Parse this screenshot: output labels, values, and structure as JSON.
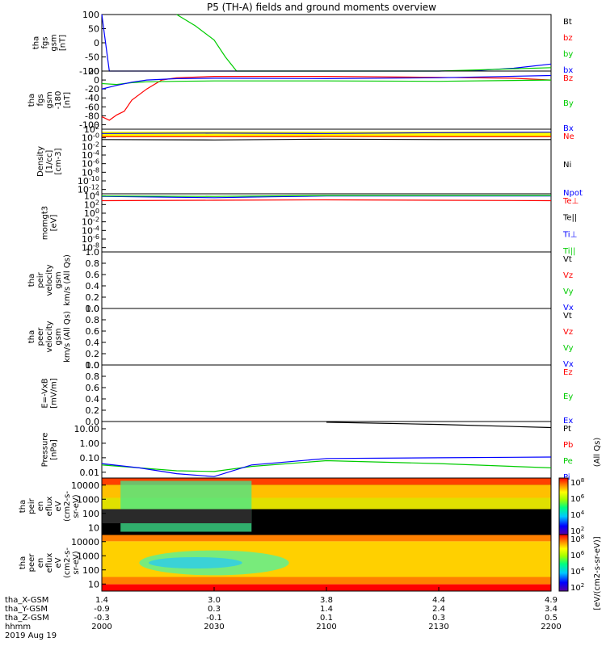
{
  "title": "P5 (TH-A) fields and ground moments overview",
  "colors": {
    "black": "#000000",
    "red": "#ff0000",
    "green": "#00cc00",
    "blue": "#0000ff",
    "yellow": "#ffff00"
  },
  "chart_data": [
    {
      "type": "line",
      "ylabel": [
        "tha",
        "fgs",
        "gsm",
        "[nT]"
      ],
      "yticks": [
        "100",
        "50",
        "0",
        "-50",
        "-100"
      ],
      "ylim": [
        -100,
        100
      ],
      "legend": [
        {
          "name": "Bt",
          "color": "black"
        },
        {
          "name": "bz",
          "color": "red"
        },
        {
          "name": "by",
          "color": "green"
        },
        {
          "name": "bx",
          "color": "blue"
        }
      ],
      "series": [
        {
          "name": "bx",
          "color": "blue",
          "x": [
            2000,
            2002,
            2010,
            2030,
            2100,
            2130,
            2140,
            2150,
            2200
          ],
          "y": [
            100,
            -100,
            -100,
            -100,
            -100,
            -100,
            -98,
            -90,
            -75
          ]
        },
        {
          "name": "by",
          "color": "green",
          "x": [
            2020,
            2025,
            2030,
            2033,
            2036,
            2045,
            2100,
            2130,
            2200
          ],
          "y": [
            100,
            60,
            10,
            -50,
            -100,
            -100,
            -100,
            -100,
            -88
          ]
        }
      ]
    },
    {
      "type": "line",
      "ylabel": [
        "tha",
        "fgs",
        "gsm",
        "-180",
        "[nT]"
      ],
      "yticks": [
        "20",
        "0",
        "-20",
        "-40",
        "-60",
        "-80",
        "-100"
      ],
      "ylim": [
        -110,
        20
      ],
      "legend": [
        {
          "name": "Bz",
          "color": "red"
        },
        {
          "name": "By",
          "color": "green"
        },
        {
          "name": "Bx",
          "color": "blue"
        }
      ],
      "series": [
        {
          "name": "Bz",
          "color": "red",
          "x": [
            2000,
            2002,
            2004,
            2006,
            2008,
            2012,
            2016,
            2020,
            2030,
            2045,
            2100,
            2130,
            2150,
            2200
          ],
          "y": [
            -82,
            -90,
            -78,
            -70,
            -45,
            -20,
            0,
            5,
            8,
            8,
            8,
            6,
            4,
            0
          ]
        },
        {
          "name": "By",
          "color": "green",
          "x": [
            2000,
            2004,
            2008,
            2012,
            2020,
            2030,
            2100,
            2130,
            2200
          ],
          "y": [
            -8,
            -10,
            -6,
            -4,
            -3,
            -2,
            -2,
            -3,
            0
          ]
        },
        {
          "name": "Bx",
          "color": "blue",
          "x": [
            2000,
            2004,
            2008,
            2012,
            2020,
            2030,
            2100,
            2130,
            2200
          ],
          "y": [
            -20,
            -12,
            -5,
            0,
            3,
            4,
            3,
            5,
            10
          ]
        }
      ]
    },
    {
      "type": "line",
      "ylabel": [
        "Density",
        "[1/cc]",
        "[cm-3]"
      ],
      "yticks": [
        "10^2",
        "10^-0",
        "10^-2",
        "10^-4",
        "10^-6",
        "10^-8",
        "10^-10",
        "10^-12"
      ],
      "ylim": [
        -13,
        2
      ],
      "log": true,
      "legend": [
        {
          "name": "Ne",
          "color": "red"
        },
        {
          "name": "Ni",
          "color": "black"
        },
        {
          "name": "Npot",
          "color": "blue"
        }
      ],
      "series": [
        {
          "name": "Ne",
          "color": "red",
          "x": [
            2000,
            2030,
            2100,
            2130,
            2200
          ],
          "y": [
            0.3,
            0.3,
            0.35,
            0.3,
            0.3
          ]
        },
        {
          "name": "Ni",
          "color": "black",
          "x": [
            2000,
            2030,
            2100,
            2130,
            2200
          ],
          "y": [
            -0.4,
            -0.5,
            -0.3,
            -0.4,
            -0.4
          ]
        },
        {
          "name": "Npot",
          "color": "blue",
          "x": [
            2000,
            2030,
            2100,
            2130,
            2200
          ],
          "y": [
            1.0,
            1.1,
            1.0,
            1.2,
            1.3
          ]
        }
      ]
    },
    {
      "type": "line",
      "ylabel": [
        "momgt3",
        "[eV]"
      ],
      "yticks": [
        "10^4",
        "10^2",
        "10^0",
        "10^-2",
        "10^-4",
        "10^-6",
        "10^-8"
      ],
      "ylim": [
        -9,
        4.5
      ],
      "log": true,
      "legend": [
        {
          "name": "Te⊥",
          "color": "red"
        },
        {
          "name": "Te||",
          "color": "black"
        },
        {
          "name": "Ti⊥",
          "color": "blue"
        },
        {
          "name": "Ti||",
          "color": "green"
        }
      ],
      "series": [
        {
          "name": "Te⊥",
          "color": "red",
          "x": [
            2000,
            2030,
            2100,
            2130,
            2200
          ],
          "y": [
            2.9,
            3.0,
            3.1,
            3.0,
            2.9
          ]
        },
        {
          "name": "Ti⊥",
          "color": "blue",
          "x": [
            2000,
            2020,
            2030,
            2045,
            2100,
            2130,
            2200
          ],
          "y": [
            3.9,
            3.7,
            3.6,
            3.8,
            4.0,
            4.0,
            4.0
          ]
        },
        {
          "name": "Ti||",
          "color": "green",
          "x": [
            2000,
            2030,
            2100,
            2200
          ],
          "y": [
            4.0,
            3.9,
            4.1,
            4.1
          ]
        }
      ]
    },
    {
      "type": "line",
      "ylabel": [
        "tha",
        "peir",
        "velocity",
        "gsm",
        "km/s (All Qs)"
      ],
      "yticks": [
        "1.0",
        "0.8",
        "0.6",
        "0.4",
        "0.2",
        "0.0"
      ],
      "ylim": [
        0,
        1
      ],
      "legend": [
        {
          "name": "Vt",
          "color": "black"
        },
        {
          "name": "Vz",
          "color": "red"
        },
        {
          "name": "Vy",
          "color": "green"
        },
        {
          "name": "Vx",
          "color": "blue"
        }
      ],
      "series": []
    },
    {
      "type": "line",
      "ylabel": [
        "tha",
        "peer",
        "velocity",
        "gsm",
        "km/s (All Qs)"
      ],
      "yticks": [
        "1.0",
        "0.8",
        "0.6",
        "0.4",
        "0.2",
        "0.0"
      ],
      "ylim": [
        0,
        1
      ],
      "legend": [
        {
          "name": "Vt",
          "color": "black"
        },
        {
          "name": "Vz",
          "color": "red"
        },
        {
          "name": "Vy",
          "color": "green"
        },
        {
          "name": "Vx",
          "color": "blue"
        }
      ],
      "series": []
    },
    {
      "type": "line",
      "ylabel": [
        "E=-VxB",
        "[mV/m]"
      ],
      "yticks": [
        "1.0",
        "0.8",
        "0.6",
        "0.4",
        "0.2",
        "0.0"
      ],
      "ylim": [
        0,
        1
      ],
      "legend": [
        {
          "name": "Ez",
          "color": "red"
        },
        {
          "name": "Ey",
          "color": "green"
        },
        {
          "name": "Ex",
          "color": "blue"
        }
      ],
      "series": []
    },
    {
      "type": "line",
      "ylabel": [
        "Pressure",
        "[nPa]"
      ],
      "yticks": [
        "10.00",
        "1.00",
        "0.10",
        "0.01"
      ],
      "ylim": [
        -2.4,
        1.5
      ],
      "log": true,
      "legend": [
        {
          "name": "Pt",
          "color": "black"
        },
        {
          "name": "Pb",
          "color": "red"
        },
        {
          "name": "Pe",
          "color": "green"
        },
        {
          "name": "Pi",
          "color": "blue"
        }
      ],
      "series": [
        {
          "name": "Pt",
          "color": "black",
          "x": [
            2100,
            2130,
            2200
          ],
          "y": [
            1.45,
            1.3,
            1.08
          ]
        },
        {
          "name": "Pe",
          "color": "green",
          "x": [
            2000,
            2010,
            2020,
            2030,
            2040,
            2100,
            2130,
            2200
          ],
          "y": [
            -1.5,
            -1.7,
            -1.9,
            -1.95,
            -1.6,
            -1.2,
            -1.4,
            -1.7
          ]
        },
        {
          "name": "Pi",
          "color": "blue",
          "x": [
            2000,
            2010,
            2020,
            2030,
            2040,
            2100,
            2130,
            2200
          ],
          "y": [
            -1.4,
            -1.7,
            -2.1,
            -2.3,
            -1.5,
            -1.05,
            -1.0,
            -0.95
          ]
        }
      ]
    },
    {
      "type": "heatmap",
      "ylabel": [
        "tha",
        "peir",
        "en",
        "eflux",
        "eV",
        "(cm2-s-",
        "sr-eV)"
      ],
      "yticks": [
        "10000",
        "1000",
        "100",
        "10"
      ]
    },
    {
      "type": "heatmap",
      "ylabel": [
        "tha",
        "peer",
        "en",
        "eflux",
        "eV",
        "(cm2-s-",
        "sr-eV)"
      ],
      "yticks": [
        "10000",
        "1000",
        "100",
        "10"
      ]
    }
  ],
  "colorbar": {
    "ticks": [
      "10^8",
      "10^6",
      "10^4",
      "10^2"
    ],
    "label": "[eV/(cm2-s-sr-eV)]",
    "label2": "(All Qs)"
  },
  "xaxis": {
    "rows": [
      {
        "label": "tha_X-GSM",
        "values": [
          "1.4",
          "3.0",
          "3.8",
          "4.4",
          "4.9"
        ]
      },
      {
        "label": "tha_Y-GSM",
        "values": [
          "-0.9",
          "0.3",
          "1.4",
          "2.4",
          "3.4"
        ]
      },
      {
        "label": "tha_Z-GSM",
        "values": [
          "-0.3",
          "-0.1",
          "0.1",
          "0.3",
          "0.5"
        ]
      },
      {
        "label": "hhmm",
        "values": [
          "2000",
          "2030",
          "2100",
          "2130",
          "2200"
        ]
      }
    ],
    "date": "2019 Aug 19"
  }
}
